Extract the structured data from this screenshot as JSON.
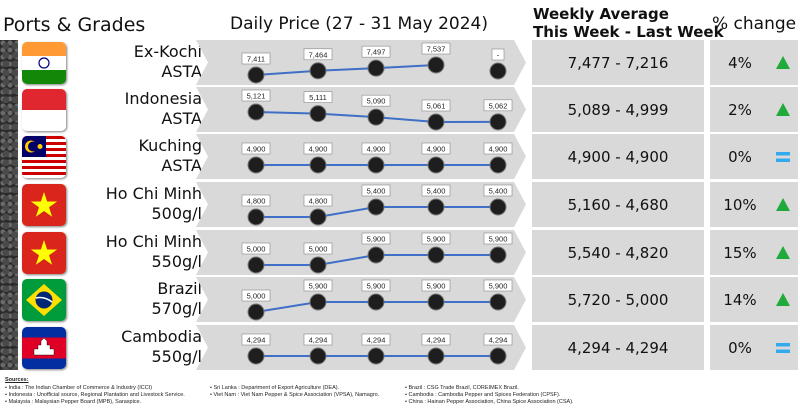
{
  "headers": {
    "ports": "Ports & Grades",
    "daily": "Daily Price (27 - 31 May 2024)",
    "weekly_line1": "Weekly Average",
    "weekly_line2": "This Week - Last Week",
    "change": "% change"
  },
  "chart_data": {
    "type": "table",
    "title": "Daily Price (27 - 31 May 2024)",
    "rows": [
      {
        "port": "Ex-Kochi",
        "grade": "ASTA",
        "flag": "india",
        "daily": [
          "7,411",
          "7,464",
          "7,497",
          "7,537",
          "-"
        ],
        "values": [
          7411,
          7464,
          7497,
          7537,
          null
        ],
        "weekly": "7,477 - 7,216",
        "change": "4%",
        "trend": "up"
      },
      {
        "port": "Indonesia",
        "grade": "ASTA",
        "flag": "indonesia",
        "daily": [
          "5,121",
          "5,111",
          "5,090",
          "5,061",
          "5,062"
        ],
        "values": [
          5121,
          5111,
          5090,
          5061,
          5062
        ],
        "weekly": "5,089 - 4,999",
        "change": "2%",
        "trend": "up"
      },
      {
        "port": "Kuching",
        "grade": "ASTA",
        "flag": "malaysia",
        "daily": [
          "4,900",
          "4,900",
          "4,900",
          "4,900",
          "4,900"
        ],
        "values": [
          4900,
          4900,
          4900,
          4900,
          4900
        ],
        "weekly": "4,900 - 4,900",
        "change": "0%",
        "trend": "flat"
      },
      {
        "port": "Ho Chi Minh",
        "grade": "500g/l",
        "flag": "vietnam",
        "daily": [
          "4,800",
          "4,800",
          "5,400",
          "5,400",
          "5,400"
        ],
        "values": [
          4800,
          4800,
          5400,
          5400,
          5400
        ],
        "weekly": "5,160 - 4,680",
        "change": "10%",
        "trend": "up"
      },
      {
        "port": "Ho Chi Minh",
        "grade": "550g/l",
        "flag": "vietnam",
        "daily": [
          "5,000",
          "5,000",
          "5,900",
          "5,900",
          "5,900"
        ],
        "values": [
          5000,
          5000,
          5900,
          5900,
          5900
        ],
        "weekly": "5,540 - 4,820",
        "change": "15%",
        "trend": "up"
      },
      {
        "port": "Brazil",
        "grade": "570g/l",
        "flag": "brazil",
        "daily": [
          "5,000",
          "5,900",
          "5,900",
          "5,900",
          "5,900"
        ],
        "values": [
          5000,
          5900,
          5900,
          5900,
          5900
        ],
        "weekly": "5,720 - 5,000",
        "change": "14%",
        "trend": "up"
      },
      {
        "port": "Cambodia",
        "grade": "550g/l",
        "flag": "cambodia",
        "daily": [
          "4,294",
          "4,294",
          "4,294",
          "4,294",
          "4,294"
        ],
        "values": [
          4294,
          4294,
          4294,
          4294,
          4294
        ],
        "weekly": "4,294 - 4,294",
        "change": "0%",
        "trend": "flat"
      }
    ]
  },
  "colors": {
    "panel": "#d9d9d9",
    "line": "#3f6fc6",
    "up": "#1faa3a",
    "flat": "#33aaee",
    "label_bg": "#ffffff"
  },
  "sources": {
    "title": "Sources:",
    "col1": [
      "India : The Indian Chamber of Commerce & Industry (ICCI)",
      "Indonesia : Unofficial source, Regional Plantation and Livestock Service.",
      "Malaysia : Malaysian Pepper Board (MPB), Saraspice."
    ],
    "col2": [
      "Sri Lanka : Department of Export Agriculture (DEA).",
      "Viet Nam : Viet Nam Pepper & Spice Association (VPSA), Namagro."
    ],
    "col3": [
      "Brazil : CSG Trade Brazil, COREIMEX Brazil.",
      "Cambodia : Cambodia Pepper and Spices Federation (CPSF).",
      "China : Hainan Pepper Association, China Spice Association (CSA)."
    ]
  }
}
